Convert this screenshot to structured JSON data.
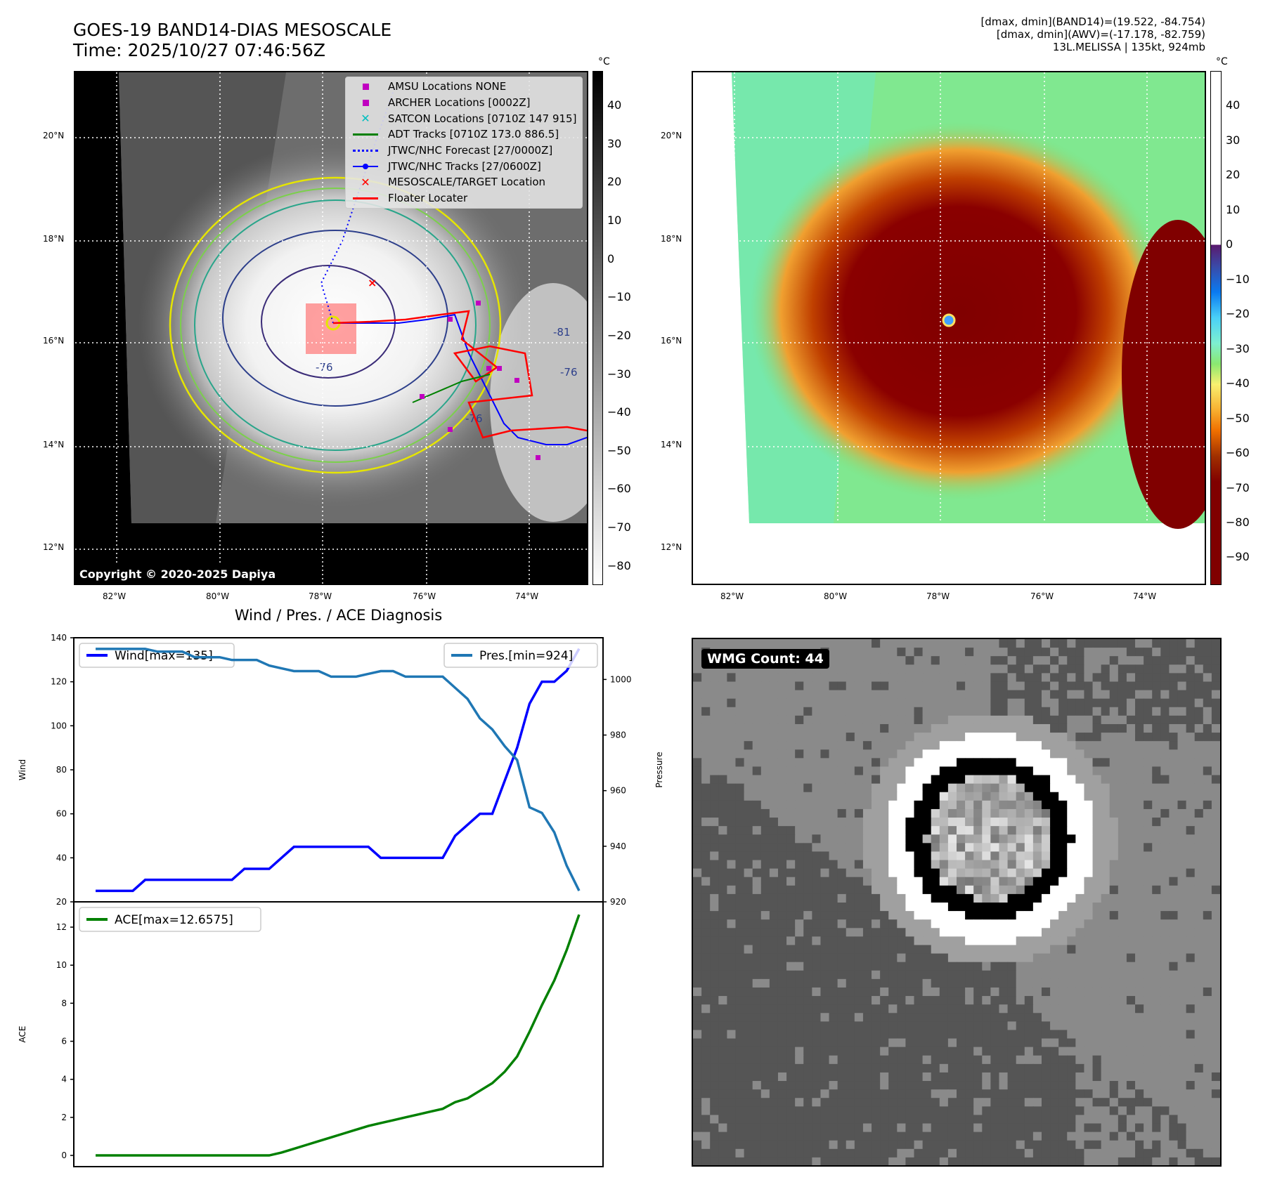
{
  "header": {
    "title": "GOES-19 BAND14-DIAS MESOSCALE",
    "time": "Time: 2025/10/27 07:46:56Z",
    "info_line1": "[dmax, dmin](BAND14)=(19.522, -84.754)",
    "info_line2": "[dmax, dmin](AWV)=(-17.178, -82.759)",
    "info_line3": "13L.MELISSA | 135kt, 924mb"
  },
  "map": {
    "lon_ticks": [
      "82°W",
      "80°W",
      "78°W",
      "76°W",
      "74°W"
    ],
    "lat_ticks": [
      "20°N",
      "18°N",
      "16°N",
      "14°N",
      "12°N"
    ],
    "copyright": "Copyright © 2020-2025 Dapiya",
    "contour_labels": [
      "-76",
      "-81",
      "-76",
      "-76"
    ],
    "legend": [
      {
        "label": "AMSU Locations NONE",
        "symbol": "square",
        "color": "#c000c0"
      },
      {
        "label": "ARCHER Locations [0002Z]",
        "symbol": "square",
        "color": "#c000c0"
      },
      {
        "label": "SATCON Locations [0710Z 147 915]",
        "symbol": "x",
        "color": "#00bfbf"
      },
      {
        "label": "ADT Tracks [0710Z 173.0 886.5]",
        "symbol": "line",
        "color": "#008000"
      },
      {
        "label": "JTWC/NHC Forecast [27/0000Z]",
        "symbol": "dotted",
        "color": "#0000ff"
      },
      {
        "label": "JTWC/NHC Tracks [27/0600Z]",
        "symbol": "line-dot",
        "color": "#0000ff"
      },
      {
        "label": "MESOSCALE/TARGET Location",
        "symbol": "x",
        "color": "#ff0000"
      },
      {
        "label": "Floater Locater",
        "symbol": "line",
        "color": "#ff0000"
      }
    ]
  },
  "colorbar_gray": {
    "unit": "°C",
    "ticks": [
      "40",
      "30",
      "20",
      "10",
      "0",
      "−10",
      "−20",
      "−30",
      "−40",
      "−50",
      "−60",
      "−70",
      "−80"
    ],
    "values": [
      40,
      30,
      20,
      10,
      0,
      -10,
      -20,
      -30,
      -40,
      -50,
      -60,
      -70,
      -80
    ],
    "range": [
      -85,
      49
    ]
  },
  "colorbar_color": {
    "unit": "°C",
    "ticks": [
      "40",
      "30",
      "20",
      "10",
      "0",
      "−10",
      "−20",
      "−30",
      "−40",
      "−50",
      "−60",
      "−70",
      "−80",
      "−90"
    ],
    "values": [
      40,
      30,
      20,
      10,
      0,
      -10,
      -20,
      -30,
      -40,
      -50,
      -60,
      -70,
      -80,
      -90
    ],
    "range": [
      -98,
      50
    ]
  },
  "wmg": {
    "label": "WMG Count: 44"
  },
  "chart_data": {
    "type": "line",
    "title": "Wind / Pres. / ACE Diagnosis",
    "x": [
      0,
      1,
      2,
      3,
      4,
      5,
      6,
      7,
      8,
      9,
      10,
      11,
      12,
      13,
      14,
      15,
      16,
      17,
      18,
      19,
      20,
      21,
      22,
      23,
      24,
      25,
      26,
      27,
      28,
      29,
      30,
      31,
      32,
      33,
      34,
      35,
      36,
      37,
      38,
      39
    ],
    "xlim": [
      -1.76,
      40.93
    ],
    "wind_panel": {
      "ylabel": "Wind",
      "ylim": [
        20,
        140
      ],
      "yticks": [
        20,
        40,
        60,
        80,
        100,
        120,
        140
      ],
      "y2label": "Pressure",
      "y2lim": [
        920,
        1015
      ],
      "y2ticks": [
        920,
        940,
        960,
        980,
        1000
      ],
      "series": [
        {
          "name": "Wind[max=135]",
          "axis": "left",
          "color": "#0000ff",
          "values": [
            25,
            25,
            25,
            25,
            30,
            30,
            30,
            30,
            30,
            30,
            30,
            30,
            35,
            35,
            35,
            40,
            45,
            45,
            45,
            45,
            45,
            45,
            45,
            40,
            40,
            40,
            40,
            40,
            40,
            50,
            55,
            60,
            60,
            75,
            90,
            110,
            120,
            120,
            125,
            135
          ]
        },
        {
          "name": "Pres.[min=924]",
          "axis": "right",
          "color": "#1f77b4",
          "values": [
            1011,
            1011,
            1011,
            1011,
            1011,
            1010,
            1010,
            1010,
            1008,
            1008,
            1008,
            1007,
            1007,
            1007,
            1005,
            1004,
            1003,
            1003,
            1003,
            1001,
            1001,
            1001,
            1002,
            1003,
            1003,
            1001,
            1001,
            1001,
            1001,
            997,
            993,
            986,
            982,
            976,
            971,
            954,
            952,
            945,
            933,
            924
          ]
        }
      ]
    },
    "ace_panel": {
      "ylabel": "ACE",
      "ylim": [
        -0.59,
        13.33
      ],
      "yticks": [
        0,
        2,
        4,
        6,
        8,
        10,
        12
      ],
      "series": [
        {
          "name": "ACE[max=12.6575]",
          "color": "#008000",
          "values": [
            0,
            0,
            0,
            0,
            0,
            0,
            0,
            0,
            0,
            0,
            0,
            0,
            0,
            0,
            0,
            0.15,
            0.35,
            0.55,
            0.75,
            0.95,
            1.15,
            1.35,
            1.55,
            1.7,
            1.85,
            2.0,
            2.15,
            2.3,
            2.45,
            2.8,
            3.0,
            3.4,
            3.8,
            4.4,
            5.2,
            6.5,
            7.9,
            9.2,
            10.8,
            12.66
          ]
        }
      ]
    }
  }
}
